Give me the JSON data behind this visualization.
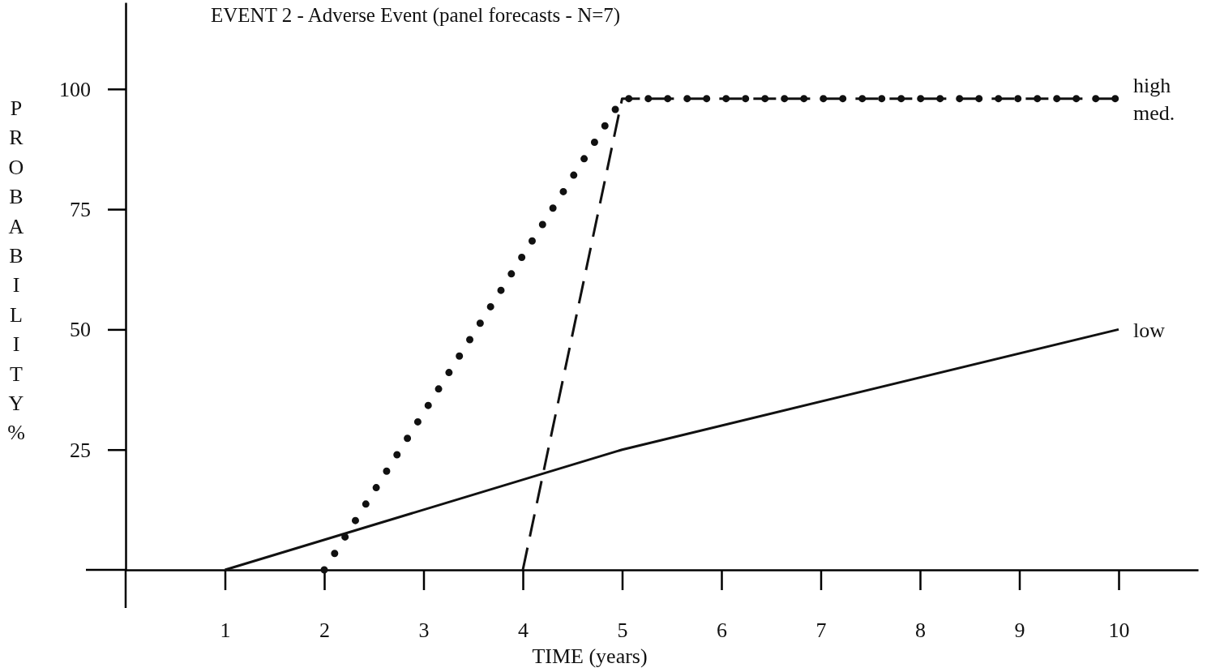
{
  "chart_data": {
    "type": "line",
    "title": "EVENT 2 - Adverse Event (panel forecasts - N=7)",
    "xlabel": "TIME (years)",
    "ylabel": "PROBABILITY %",
    "xlim": [
      0,
      10.8
    ],
    "xticks": [
      1,
      2,
      3,
      4,
      5,
      6,
      7,
      8,
      9,
      10
    ],
    "ylim": [
      0,
      118
    ],
    "yticks": [
      25,
      50,
      75,
      100
    ],
    "grid": false,
    "legend": false,
    "marker": "none",
    "series": [
      {
        "name": "high",
        "color": "#111111",
        "line_style": "dotted",
        "x": [
          2,
          5,
          10
        ],
        "values": [
          0,
          98,
          98
        ]
      },
      {
        "name": "med.",
        "color": "#111111",
        "line_style": "dashed",
        "x": [
          4,
          5,
          10
        ],
        "values": [
          0,
          98,
          98
        ]
      },
      {
        "name": "low",
        "color": "#111111",
        "line_style": "solid",
        "x": [
          1,
          5,
          10
        ],
        "values": [
          0,
          25,
          50
        ]
      }
    ]
  }
}
